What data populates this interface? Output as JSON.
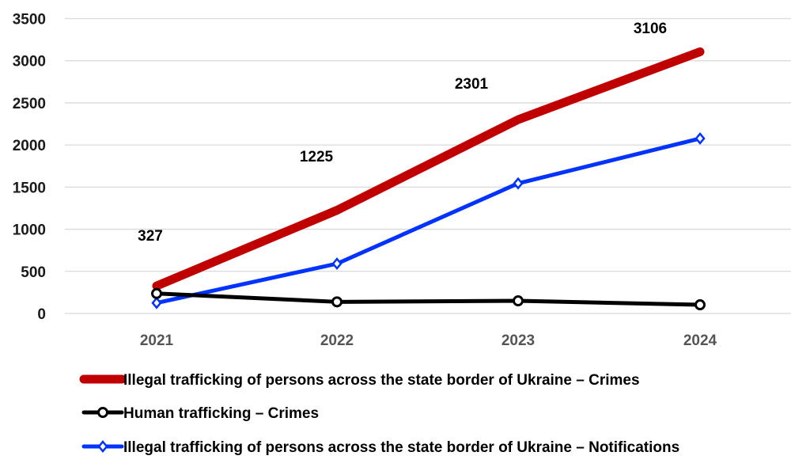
{
  "chart_data": {
    "type": "line",
    "title": "",
    "xlabel": "",
    "ylabel": "",
    "categories": [
      "2021",
      "2022",
      "2023",
      "2024"
    ],
    "ylim": [
      0,
      3500
    ],
    "yticks": [
      "0",
      "500",
      "1000",
      "1500",
      "2000",
      "2500",
      "3000",
      "3500"
    ],
    "grid": true,
    "legend_position": "bottom",
    "series": [
      {
        "name": "Illegal trafficking of persons across the state border of Ukraine – Crimes",
        "values": [
          327,
          1225,
          2301,
          3106
        ],
        "data_labels": [
          "327",
          "1225",
          "2301",
          "3106"
        ],
        "color": "#c00000",
        "marker": "none"
      },
      {
        "name": "Human trafficking – Crimes",
        "values": [
          237,
          138,
          150,
          103
        ],
        "color": "#000000",
        "marker": "circle"
      },
      {
        "name": "Illegal trafficking of persons across the state border of Ukraine – Notifications",
        "values": [
          125,
          591,
          1544,
          2077
        ],
        "color": "#0033ff",
        "marker": "diamond"
      }
    ]
  }
}
